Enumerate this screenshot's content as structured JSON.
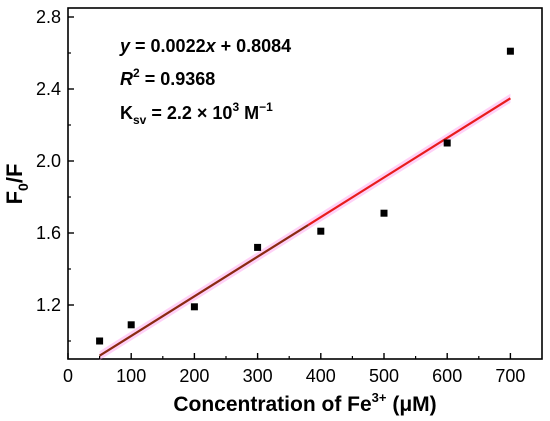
{
  "chart_data": {
    "type": "scatter",
    "xlabel_main": "Concentration of Fe",
    "xlabel_sup": "3+",
    "xlabel_unit": " (μM)",
    "ylabel_main": "F",
    "ylabel_sub": "0",
    "ylabel_end": "/F",
    "xlim": [
      0,
      750
    ],
    "ylim": [
      0.9,
      2.85
    ],
    "xticks": [
      0,
      100,
      200,
      300,
      400,
      500,
      600,
      700
    ],
    "yticks": [
      1.2,
      1.6,
      2.0,
      2.4,
      2.8
    ],
    "xtick_labels": [
      "0",
      "100",
      "200",
      "300",
      "400",
      "500",
      "600",
      "700"
    ],
    "ytick_labels": [
      "1.2",
      "1.6",
      "2.0",
      "2.4",
      "2.8"
    ],
    "points": [
      {
        "x": 50,
        "y": 1.0
      },
      {
        "x": 100,
        "y": 1.09
      },
      {
        "x": 200,
        "y": 1.19
      },
      {
        "x": 300,
        "y": 1.52
      },
      {
        "x": 400,
        "y": 1.61
      },
      {
        "x": 500,
        "y": 1.71
      },
      {
        "x": 600,
        "y": 2.1
      },
      {
        "x": 700,
        "y": 2.61
      }
    ],
    "fit": {
      "slope": 0.0022,
      "intercept": 0.8084,
      "x_range": [
        50,
        700
      ],
      "color": "#e81c1c",
      "shade_color": "#ff99ee"
    },
    "point_color": "#000000",
    "annotations": {
      "eq_y": "y",
      "eq_rest": " = 0.0022",
      "eq_x": "x",
      "eq_tail": " + 0.8084",
      "r2_r": "R",
      "r2_sup": "2",
      "r2_tail": " = 0.9368",
      "ksv_k": "K",
      "ksv_sub": "sv",
      "ksv_mid": " = 2.2 × 10",
      "ksv_sup": "3",
      "ksv_unit": " M",
      "ksv_unit_sup": "−1"
    },
    "grid": false,
    "legend": "none"
  }
}
